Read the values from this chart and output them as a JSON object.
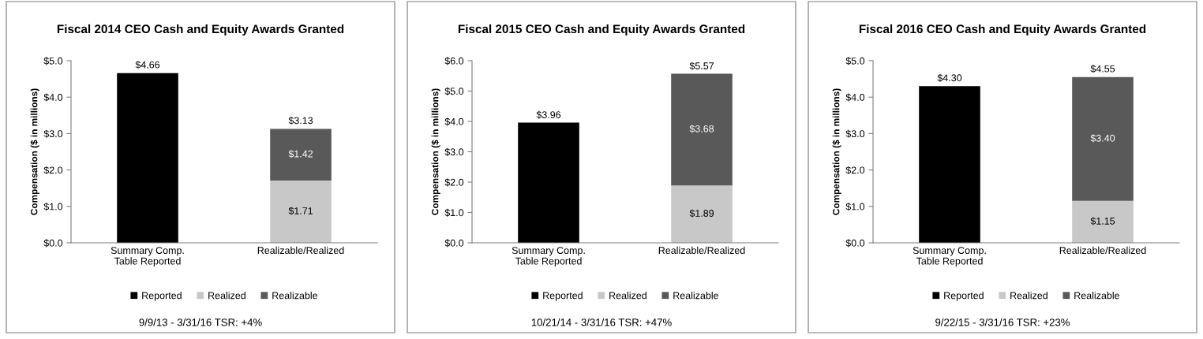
{
  "chart_data": [
    {
      "type": "bar",
      "title": "Fiscal 2014 CEO Cash and Equity Awards Granted",
      "ylabel": "Compensation ($ in millions)",
      "categories": [
        "Summary Comp.\nTable Reported",
        "Realizable/Realized"
      ],
      "stacked": true,
      "legend": "bottom",
      "grid": false,
      "series": [
        {
          "name": "Reported",
          "color": "#000000",
          "values": [
            4.66,
            null
          ],
          "value_labels": [
            "$4.66",
            null
          ]
        },
        {
          "name": "Realized",
          "color": "#c8c8c8",
          "values": [
            null,
            1.71
          ],
          "value_labels": [
            null,
            "$1.71"
          ]
        },
        {
          "name": "Realizable",
          "color": "#595959",
          "values": [
            null,
            1.42
          ],
          "value_labels": [
            null,
            "$1.42"
          ]
        }
      ],
      "totals": [
        null,
        "$3.13"
      ],
      "ylim": [
        0,
        5
      ],
      "yticks": [
        {
          "value": 0,
          "label": "$0.0"
        },
        {
          "value": 1,
          "label": "$1.0"
        },
        {
          "value": 2,
          "label": "$2.0"
        },
        {
          "value": 3,
          "label": "$3.0"
        },
        {
          "value": 4,
          "label": "$4.0"
        },
        {
          "value": 5,
          "label": "$5.0"
        }
      ],
      "annotations": [
        "9/9/13 - 3/31/16 TSR: +4%"
      ]
    },
    {
      "type": "bar",
      "title": "Fiscal 2015 CEO Cash and Equity Awards Granted",
      "ylabel": "Compensation ($ in millions)",
      "categories": [
        "Summary Comp.\nTable Reported",
        "Realizable/Realized"
      ],
      "stacked": true,
      "legend": "bottom",
      "grid": false,
      "series": [
        {
          "name": "Reported",
          "color": "#000000",
          "values": [
            3.96,
            null
          ],
          "value_labels": [
            "$3.96",
            null
          ]
        },
        {
          "name": "Realized",
          "color": "#c8c8c8",
          "values": [
            null,
            1.89
          ],
          "value_labels": [
            null,
            "$1.89"
          ]
        },
        {
          "name": "Realizable",
          "color": "#595959",
          "values": [
            null,
            3.68
          ],
          "value_labels": [
            null,
            "$3.68"
          ]
        }
      ],
      "totals": [
        null,
        "$5.57"
      ],
      "ylim": [
        0,
        6
      ],
      "yticks": [
        {
          "value": 0,
          "label": "$0.0"
        },
        {
          "value": 1,
          "label": "$1.0"
        },
        {
          "value": 2,
          "label": "$2.0"
        },
        {
          "value": 3,
          "label": "$3.0"
        },
        {
          "value": 4,
          "label": "$4.0"
        },
        {
          "value": 5,
          "label": "$5.0"
        },
        {
          "value": 6,
          "label": "$6.0"
        }
      ],
      "annotations": [
        "10/21/14 - 3/31/16 TSR: +47%"
      ]
    },
    {
      "type": "bar",
      "title": "Fiscal 2016 CEO Cash and Equity Awards Granted",
      "ylabel": "Compensation ($ in millions)",
      "categories": [
        "Summary Comp.\nTable Reported",
        "Realizable/Realized"
      ],
      "stacked": true,
      "legend": "bottom",
      "grid": false,
      "series": [
        {
          "name": "Reported",
          "color": "#000000",
          "values": [
            4.3,
            null
          ],
          "value_labels": [
            "$4.30",
            null
          ]
        },
        {
          "name": "Realized",
          "color": "#c8c8c8",
          "values": [
            null,
            1.15
          ],
          "value_labels": [
            null,
            "$1.15"
          ]
        },
        {
          "name": "Realizable",
          "color": "#595959",
          "values": [
            null,
            3.4
          ],
          "value_labels": [
            null,
            "$3.40"
          ]
        }
      ],
      "totals": [
        null,
        "$4.55"
      ],
      "ylim": [
        0,
        5
      ],
      "yticks": [
        {
          "value": 0,
          "label": "$0.0"
        },
        {
          "value": 1,
          "label": "$1.0"
        },
        {
          "value": 2,
          "label": "$2.0"
        },
        {
          "value": 3,
          "label": "$3.0"
        },
        {
          "value": 4,
          "label": "$4.0"
        },
        {
          "value": 5,
          "label": "$5.0"
        }
      ],
      "annotations": [
        "9/22/15 - 3/31/16 TSR: +23%"
      ]
    }
  ]
}
